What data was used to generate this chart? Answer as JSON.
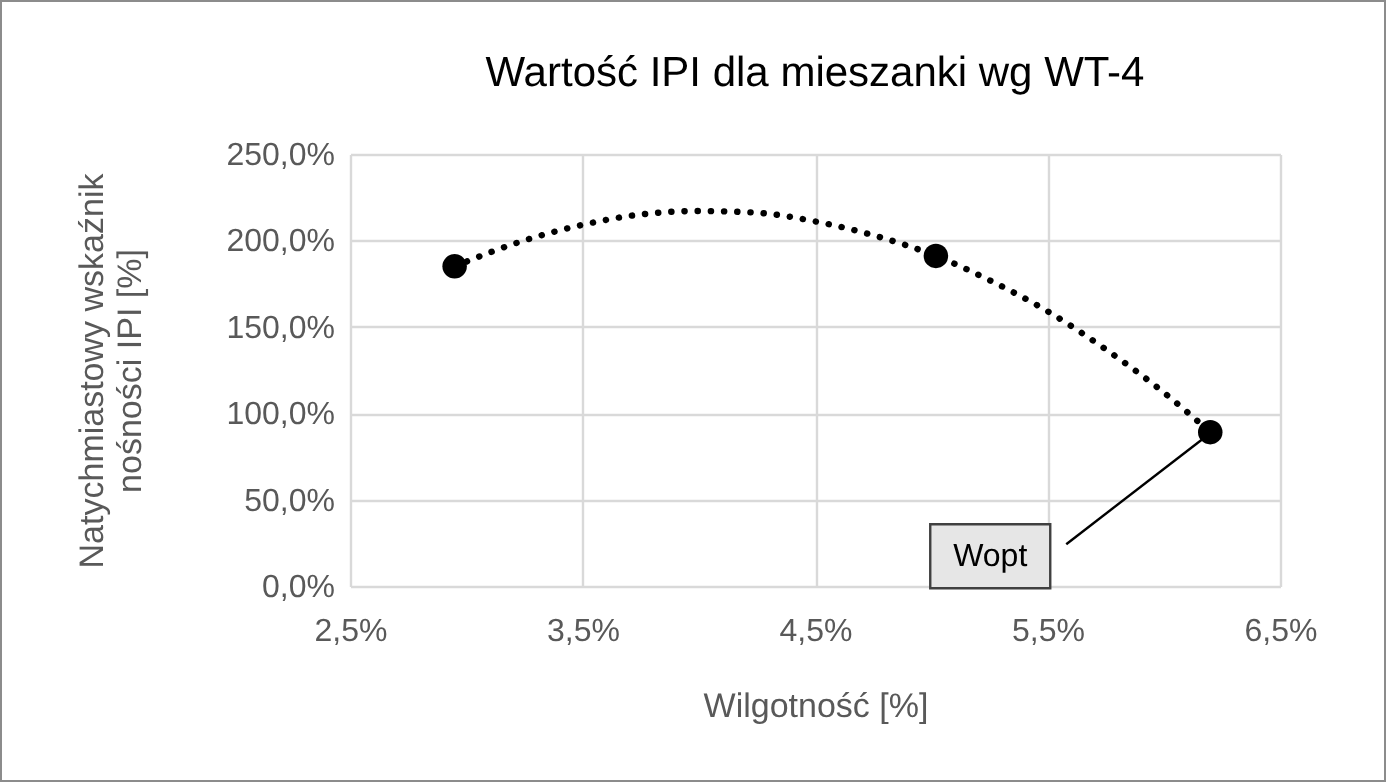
{
  "chart_data": {
    "type": "scatter",
    "title": "Wartość IPI dla mieszanki wg WT-4",
    "xlabel": "Wilgotność [%]",
    "ylabel": "Natychmiastowy wskaźnik nośności IPI [%]",
    "xlim": [
      2.5,
      6.5
    ],
    "xticks": [
      {
        "value": 2.5,
        "label": "2,5%"
      },
      {
        "value": 3.5,
        "label": "3,5%"
      },
      {
        "value": 4.5,
        "label": "4,5%"
      },
      {
        "value": 5.5,
        "label": "5,5%"
      },
      {
        "value": 6.5,
        "label": "6,5%"
      }
    ],
    "ylim": [
      0,
      250
    ],
    "yticks": [
      {
        "value": 0,
        "label": "0,0%"
      },
      {
        "value": 50,
        "label": "50,0%"
      },
      {
        "value": 100,
        "label": "100,0%"
      },
      {
        "value": 150,
        "label": "150,0%"
      },
      {
        "value": 200,
        "label": "200,0%"
      },
      {
        "value": 250,
        "label": "250,0%"
      }
    ],
    "grid": true,
    "marker": "circle",
    "series": [
      {
        "type": "line",
        "color": "#000000",
        "line_style": "dotted",
        "marker": "none",
        "x": [
          2.95,
          3.25,
          3.5,
          3.75,
          4.0,
          4.25,
          4.5,
          4.75,
          5.02,
          5.25,
          5.5,
          5.75,
          6.0,
          6.2
        ],
        "values": [
          185,
          200,
          209,
          215,
          217,
          216,
          211,
          203,
          191,
          177,
          159,
          137,
          112,
          89
        ]
      },
      {
        "color": "#000000",
        "x": [
          2.95,
          5.02,
          6.2
        ],
        "values": [
          185,
          191,
          89
        ]
      }
    ],
    "annotations": [
      {
        "text": "Wopt",
        "x": 6.2,
        "y": 89
      }
    ]
  }
}
